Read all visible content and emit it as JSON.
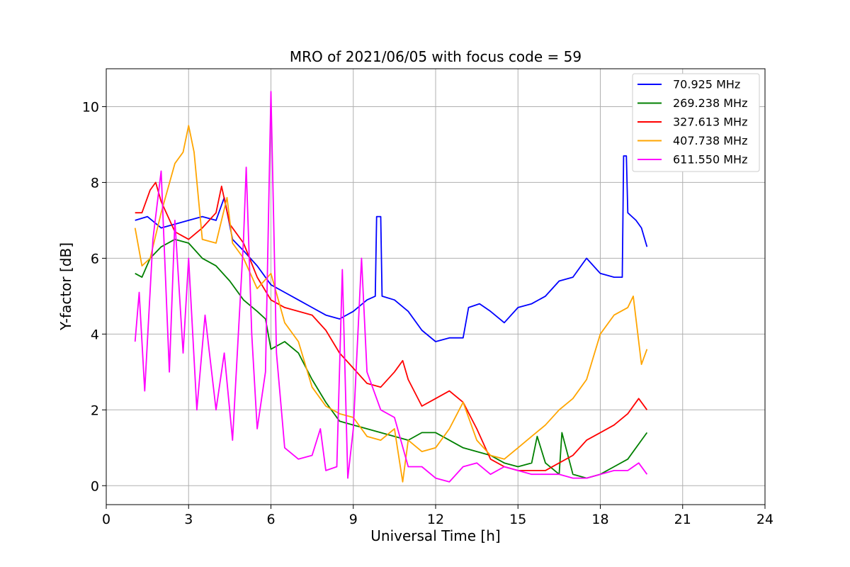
{
  "chart_data": {
    "type": "line",
    "title": "MRO of 2021/06/05 with focus code = 59",
    "xlabel": "Universal Time [h]",
    "ylabel": "Y-factor [dB]",
    "xlim": [
      0,
      24
    ],
    "ylim": [
      -0.5,
      11
    ],
    "xticks": [
      0,
      3,
      6,
      9,
      12,
      15,
      18,
      21,
      24
    ],
    "yticks": [
      0,
      2,
      4,
      6,
      8,
      10
    ],
    "grid": true,
    "legend_position": "top-right",
    "series": [
      {
        "name": " 70.925 MHz",
        "color": "#0000ff",
        "points": [
          [
            1.05,
            7.0
          ],
          [
            1.5,
            7.1
          ],
          [
            2.0,
            6.8
          ],
          [
            2.5,
            6.9
          ],
          [
            3.0,
            7.0
          ],
          [
            3.5,
            7.1
          ],
          [
            4.0,
            7.0
          ],
          [
            4.3,
            7.6
          ],
          [
            4.6,
            6.5
          ],
          [
            5.0,
            6.2
          ],
          [
            5.5,
            5.8
          ],
          [
            6.0,
            5.3
          ],
          [
            6.5,
            5.1
          ],
          [
            7.0,
            4.9
          ],
          [
            7.5,
            4.7
          ],
          [
            8.0,
            4.5
          ],
          [
            8.5,
            4.4
          ],
          [
            9.0,
            4.6
          ],
          [
            9.5,
            4.9
          ],
          [
            9.8,
            5.0
          ],
          [
            9.85,
            7.1
          ],
          [
            10.0,
            7.1
          ],
          [
            10.05,
            5.0
          ],
          [
            10.5,
            4.9
          ],
          [
            11.0,
            4.6
          ],
          [
            11.5,
            4.1
          ],
          [
            12.0,
            3.8
          ],
          [
            12.5,
            3.9
          ],
          [
            13.0,
            3.9
          ],
          [
            13.2,
            4.7
          ],
          [
            13.6,
            4.8
          ],
          [
            14.0,
            4.6
          ],
          [
            14.5,
            4.3
          ],
          [
            15.0,
            4.7
          ],
          [
            15.5,
            4.8
          ],
          [
            16.0,
            5.0
          ],
          [
            16.5,
            5.4
          ],
          [
            17.0,
            5.5
          ],
          [
            17.5,
            6.0
          ],
          [
            18.0,
            5.6
          ],
          [
            18.5,
            5.5
          ],
          [
            18.8,
            5.5
          ],
          [
            18.85,
            8.7
          ],
          [
            18.95,
            8.7
          ],
          [
            19.0,
            7.2
          ],
          [
            19.3,
            7.0
          ],
          [
            19.5,
            6.8
          ],
          [
            19.7,
            6.3
          ]
        ]
      },
      {
        "name": "269.238 MHz",
        "color": "#008000",
        "points": [
          [
            1.05,
            5.6
          ],
          [
            1.3,
            5.5
          ],
          [
            1.6,
            6.0
          ],
          [
            2.0,
            6.3
          ],
          [
            2.5,
            6.5
          ],
          [
            3.0,
            6.4
          ],
          [
            3.5,
            6.0
          ],
          [
            4.0,
            5.8
          ],
          [
            4.5,
            5.4
          ],
          [
            5.0,
            4.9
          ],
          [
            5.5,
            4.6
          ],
          [
            5.8,
            4.4
          ],
          [
            6.0,
            3.6
          ],
          [
            6.5,
            3.8
          ],
          [
            7.0,
            3.5
          ],
          [
            7.5,
            2.8
          ],
          [
            8.0,
            2.2
          ],
          [
            8.5,
            1.7
          ],
          [
            9.0,
            1.6
          ],
          [
            9.5,
            1.5
          ],
          [
            10.0,
            1.4
          ],
          [
            10.5,
            1.3
          ],
          [
            11.0,
            1.2
          ],
          [
            11.5,
            1.4
          ],
          [
            12.0,
            1.4
          ],
          [
            12.5,
            1.2
          ],
          [
            13.0,
            1.0
          ],
          [
            13.5,
            0.9
          ],
          [
            14.0,
            0.8
          ],
          [
            14.5,
            0.6
          ],
          [
            15.0,
            0.5
          ],
          [
            15.5,
            0.6
          ],
          [
            15.7,
            1.3
          ],
          [
            16.0,
            0.6
          ],
          [
            16.5,
            0.3
          ],
          [
            16.6,
            1.4
          ],
          [
            17.0,
            0.3
          ],
          [
            17.5,
            0.2
          ],
          [
            18.0,
            0.3
          ],
          [
            18.5,
            0.5
          ],
          [
            19.0,
            0.7
          ],
          [
            19.5,
            1.2
          ],
          [
            19.7,
            1.4
          ]
        ]
      },
      {
        "name": "327.613 MHz",
        "color": "#ff0000",
        "points": [
          [
            1.05,
            7.2
          ],
          [
            1.3,
            7.2
          ],
          [
            1.6,
            7.8
          ],
          [
            1.8,
            8.0
          ],
          [
            2.0,
            7.5
          ],
          [
            2.5,
            6.7
          ],
          [
            3.0,
            6.5
          ],
          [
            3.5,
            6.8
          ],
          [
            4.0,
            7.2
          ],
          [
            4.2,
            7.9
          ],
          [
            4.5,
            6.9
          ],
          [
            5.0,
            6.4
          ],
          [
            5.5,
            5.5
          ],
          [
            6.0,
            4.9
          ],
          [
            6.5,
            4.7
          ],
          [
            7.0,
            4.6
          ],
          [
            7.5,
            4.5
          ],
          [
            8.0,
            4.1
          ],
          [
            8.5,
            3.5
          ],
          [
            9.0,
            3.1
          ],
          [
            9.5,
            2.7
          ],
          [
            10.0,
            2.6
          ],
          [
            10.5,
            3.0
          ],
          [
            10.8,
            3.3
          ],
          [
            11.0,
            2.8
          ],
          [
            11.5,
            2.1
          ],
          [
            12.0,
            2.3
          ],
          [
            12.5,
            2.5
          ],
          [
            13.0,
            2.2
          ],
          [
            13.5,
            1.5
          ],
          [
            14.0,
            0.7
          ],
          [
            14.5,
            0.5
          ],
          [
            15.0,
            0.4
          ],
          [
            15.5,
            0.4
          ],
          [
            16.0,
            0.4
          ],
          [
            16.5,
            0.6
          ],
          [
            17.0,
            0.8
          ],
          [
            17.5,
            1.2
          ],
          [
            18.0,
            1.4
          ],
          [
            18.5,
            1.6
          ],
          [
            19.0,
            1.9
          ],
          [
            19.4,
            2.3
          ],
          [
            19.7,
            2.0
          ]
        ]
      },
      {
        "name": "407.738 MHz",
        "color": "#ffa500",
        "points": [
          [
            1.05,
            6.8
          ],
          [
            1.3,
            5.8
          ],
          [
            1.6,
            6.0
          ],
          [
            2.0,
            7.2
          ],
          [
            2.5,
            8.5
          ],
          [
            2.8,
            8.8
          ],
          [
            3.0,
            9.5
          ],
          [
            3.2,
            8.8
          ],
          [
            3.5,
            6.5
          ],
          [
            4.0,
            6.4
          ],
          [
            4.4,
            7.6
          ],
          [
            4.6,
            6.4
          ],
          [
            5.0,
            6.0
          ],
          [
            5.5,
            5.2
          ],
          [
            6.0,
            5.6
          ],
          [
            6.5,
            4.3
          ],
          [
            7.0,
            3.8
          ],
          [
            7.5,
            2.6
          ],
          [
            8.0,
            2.1
          ],
          [
            8.5,
            1.9
          ],
          [
            9.0,
            1.8
          ],
          [
            9.5,
            1.3
          ],
          [
            10.0,
            1.2
          ],
          [
            10.5,
            1.5
          ],
          [
            10.8,
            0.1
          ],
          [
            11.0,
            1.2
          ],
          [
            11.5,
            0.9
          ],
          [
            12.0,
            1.0
          ],
          [
            12.5,
            1.5
          ],
          [
            13.0,
            2.2
          ],
          [
            13.5,
            1.2
          ],
          [
            14.0,
            0.8
          ],
          [
            14.5,
            0.7
          ],
          [
            15.0,
            1.0
          ],
          [
            15.5,
            1.3
          ],
          [
            16.0,
            1.6
          ],
          [
            16.5,
            2.0
          ],
          [
            17.0,
            2.3
          ],
          [
            17.5,
            2.8
          ],
          [
            18.0,
            4.0
          ],
          [
            18.5,
            4.5
          ],
          [
            19.0,
            4.7
          ],
          [
            19.2,
            5.0
          ],
          [
            19.5,
            3.2
          ],
          [
            19.7,
            3.6
          ]
        ]
      },
      {
        "name": "611.550 MHz",
        "color": "#ff00ff",
        "points": [
          [
            1.05,
            3.8
          ],
          [
            1.2,
            5.1
          ],
          [
            1.4,
            2.5
          ],
          [
            1.7,
            6.5
          ],
          [
            2.0,
            8.3
          ],
          [
            2.3,
            3.0
          ],
          [
            2.5,
            7.0
          ],
          [
            2.8,
            3.5
          ],
          [
            3.0,
            6.0
          ],
          [
            3.3,
            2.0
          ],
          [
            3.6,
            4.5
          ],
          [
            4.0,
            2.0
          ],
          [
            4.3,
            3.5
          ],
          [
            4.6,
            1.2
          ],
          [
            5.0,
            6.5
          ],
          [
            5.1,
            8.4
          ],
          [
            5.3,
            4.0
          ],
          [
            5.5,
            1.5
          ],
          [
            5.8,
            3.0
          ],
          [
            6.0,
            10.4
          ],
          [
            6.2,
            3.5
          ],
          [
            6.5,
            1.0
          ],
          [
            7.0,
            0.7
          ],
          [
            7.5,
            0.8
          ],
          [
            7.8,
            1.5
          ],
          [
            8.0,
            0.4
          ],
          [
            8.4,
            0.5
          ],
          [
            8.6,
            5.7
          ],
          [
            8.8,
            0.2
          ],
          [
            9.0,
            1.5
          ],
          [
            9.3,
            6.0
          ],
          [
            9.5,
            3.0
          ],
          [
            10.0,
            2.0
          ],
          [
            10.5,
            1.8
          ],
          [
            11.0,
            0.5
          ],
          [
            11.5,
            0.5
          ],
          [
            12.0,
            0.2
          ],
          [
            12.5,
            0.1
          ],
          [
            13.0,
            0.5
          ],
          [
            13.5,
            0.6
          ],
          [
            14.0,
            0.3
          ],
          [
            14.5,
            0.5
          ],
          [
            15.0,
            0.4
          ],
          [
            15.5,
            0.3
          ],
          [
            16.0,
            0.3
          ],
          [
            16.5,
            0.3
          ],
          [
            17.0,
            0.2
          ],
          [
            17.5,
            0.2
          ],
          [
            18.0,
            0.3
          ],
          [
            18.5,
            0.4
          ],
          [
            19.0,
            0.4
          ],
          [
            19.4,
            0.6
          ],
          [
            19.7,
            0.3
          ]
        ]
      }
    ]
  }
}
